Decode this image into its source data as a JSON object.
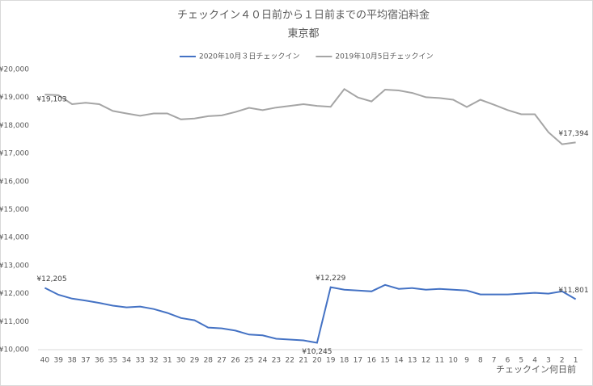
{
  "chart_data": {
    "type": "line",
    "title": "チェックイン４０日前から１日前までの平均宿泊料金",
    "subtitle": "東京都",
    "x_label": "チェックイン何日前",
    "categories": [
      40,
      39,
      38,
      37,
      36,
      35,
      34,
      33,
      32,
      31,
      30,
      29,
      28,
      27,
      26,
      25,
      24,
      23,
      22,
      21,
      20,
      19,
      18,
      17,
      16,
      15,
      14,
      13,
      12,
      11,
      10,
      9,
      8,
      7,
      6,
      5,
      4,
      3,
      2,
      1
    ],
    "series": [
      {
        "name": "2020年10月３日チェックイン",
        "color": "#4472c4",
        "values": [
          12205,
          11960,
          11820,
          11750,
          11670,
          11570,
          11510,
          11540,
          11450,
          11310,
          11130,
          11050,
          10790,
          10760,
          10680,
          10540,
          10510,
          10390,
          10360,
          10330,
          10245,
          12229,
          12140,
          12110,
          12080,
          12310,
          12170,
          12200,
          12140,
          12170,
          12140,
          12110,
          11970,
          11970,
          11970,
          12000,
          12030,
          12000,
          12080,
          11801
        ],
        "value_labels": [
          "¥12,205",
          null,
          null,
          null,
          null,
          null,
          null,
          null,
          null,
          null,
          null,
          null,
          null,
          null,
          null,
          null,
          null,
          null,
          null,
          null,
          "¥10,245",
          "¥12,229",
          null,
          null,
          null,
          null,
          null,
          null,
          null,
          null,
          null,
          null,
          null,
          null,
          null,
          null,
          null,
          null,
          null,
          "¥11,801"
        ]
      },
      {
        "name": "2019年10月5日チェックイン",
        "color": "#a5a5a5",
        "values": [
          19103,
          19080,
          18760,
          18810,
          18760,
          18520,
          18430,
          18350,
          18430,
          18430,
          18220,
          18250,
          18330,
          18360,
          18480,
          18630,
          18550,
          18640,
          18700,
          18760,
          18700,
          18670,
          19300,
          19000,
          18860,
          19280,
          19250,
          19160,
          19010,
          18980,
          18920,
          18660,
          18920,
          18740,
          18550,
          18400,
          18400,
          17760,
          17330,
          17394
        ],
        "value_labels": [
          "¥19,103",
          null,
          null,
          null,
          null,
          null,
          null,
          null,
          null,
          null,
          null,
          null,
          null,
          null,
          null,
          null,
          null,
          null,
          null,
          null,
          null,
          null,
          null,
          null,
          null,
          null,
          null,
          null,
          null,
          null,
          null,
          null,
          null,
          null,
          null,
          null,
          null,
          null,
          null,
          "¥17,394"
        ]
      }
    ],
    "ylim": [
      10000,
      20000
    ],
    "yticks": [
      {
        "value": 10000,
        "label": "¥10,000"
      },
      {
        "value": 11000,
        "label": "¥11,000"
      },
      {
        "value": 12000,
        "label": "¥12,000"
      },
      {
        "value": 13000,
        "label": "¥13,000"
      },
      {
        "value": 14000,
        "label": "¥14,000"
      },
      {
        "value": 15000,
        "label": "¥15,000"
      },
      {
        "value": 16000,
        "label": "¥16,000"
      },
      {
        "value": 17000,
        "label": "¥17,000"
      },
      {
        "value": 18000,
        "label": "¥18,000"
      },
      {
        "value": 19000,
        "label": "¥19,000"
      },
      {
        "value": 20000,
        "label": "¥20,000"
      }
    ],
    "grid": false,
    "legend": "top"
  }
}
